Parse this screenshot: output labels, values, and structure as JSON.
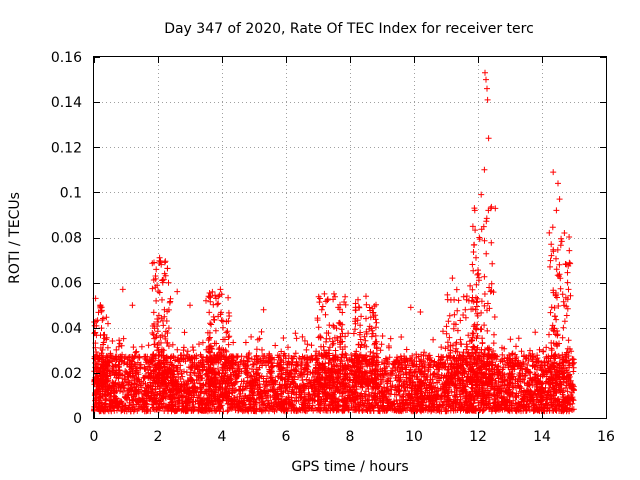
{
  "chart_data": {
    "type": "scatter",
    "title": "Day 347 of 2020, Rate Of TEC Index for receiver terc",
    "xlabel": "GPS time / hours",
    "ylabel": "ROTI / TECUs",
    "xlim": [
      0,
      16
    ],
    "ylim": [
      0,
      0.16
    ],
    "xticks": [
      0,
      2,
      4,
      6,
      8,
      10,
      12,
      14,
      16
    ],
    "xtick_labels": [
      "0",
      "2",
      "4",
      "6",
      "8",
      "10",
      "12",
      "14",
      "16"
    ],
    "yticks": [
      0,
      0.02,
      0.04,
      0.06,
      0.08,
      0.1,
      0.12,
      0.14,
      0.16
    ],
    "ytick_labels": [
      "0",
      "0.02",
      "0.04",
      "0.06",
      "0.08",
      "0.1",
      "0.12",
      "0.14",
      "0.16"
    ],
    "grid": true,
    "marker": "+",
    "color": "#ff0000",
    "x_range": [
      0,
      15
    ],
    "baseline": {
      "min": 0.003,
      "max": 0.028
    },
    "peaks": [
      {
        "x": 0.05,
        "y": 0.053
      },
      {
        "x": 0.2,
        "y": 0.05
      },
      {
        "x": 0.9,
        "y": 0.057
      },
      {
        "x": 1.2,
        "y": 0.05
      },
      {
        "x": 2.05,
        "y": 0.071
      },
      {
        "x": 2.1,
        "y": 0.068
      },
      {
        "x": 2.15,
        "y": 0.06
      },
      {
        "x": 2.6,
        "y": 0.056
      },
      {
        "x": 3.0,
        "y": 0.05
      },
      {
        "x": 3.5,
        "y": 0.052
      },
      {
        "x": 3.95,
        "y": 0.057
      },
      {
        "x": 5.3,
        "y": 0.048
      },
      {
        "x": 7.2,
        "y": 0.055
      },
      {
        "x": 7.5,
        "y": 0.055
      },
      {
        "x": 8.5,
        "y": 0.054
      },
      {
        "x": 9.9,
        "y": 0.049
      },
      {
        "x": 10.2,
        "y": 0.047
      },
      {
        "x": 11.2,
        "y": 0.062
      },
      {
        "x": 11.9,
        "y": 0.092
      },
      {
        "x": 12.1,
        "y": 0.099
      },
      {
        "x": 12.2,
        "y": 0.11
      },
      {
        "x": 12.22,
        "y": 0.153
      },
      {
        "x": 12.25,
        "y": 0.15
      },
      {
        "x": 12.28,
        "y": 0.146
      },
      {
        "x": 12.3,
        "y": 0.141
      },
      {
        "x": 12.33,
        "y": 0.124
      },
      {
        "x": 12.4,
        "y": 0.093
      },
      {
        "x": 14.35,
        "y": 0.109
      },
      {
        "x": 14.5,
        "y": 0.104
      },
      {
        "x": 14.55,
        "y": 0.097
      },
      {
        "x": 14.45,
        "y": 0.092
      },
      {
        "x": 14.7,
        "y": 0.082
      },
      {
        "x": 14.8,
        "y": 0.06
      }
    ],
    "bursts": [
      {
        "center": 0.1,
        "width": 0.35,
        "max": 0.05
      },
      {
        "center": 2.1,
        "width": 0.3,
        "max": 0.07
      },
      {
        "center": 3.9,
        "width": 0.35,
        "max": 0.056
      },
      {
        "center": 7.4,
        "width": 0.5,
        "max": 0.055
      },
      {
        "center": 8.5,
        "width": 0.35,
        "max": 0.053
      },
      {
        "center": 11.5,
        "width": 0.5,
        "max": 0.06
      },
      {
        "center": 12.15,
        "width": 0.4,
        "max": 0.095
      },
      {
        "center": 14.55,
        "width": 0.35,
        "max": 0.085
      }
    ],
    "density_per_hour": 320
  }
}
